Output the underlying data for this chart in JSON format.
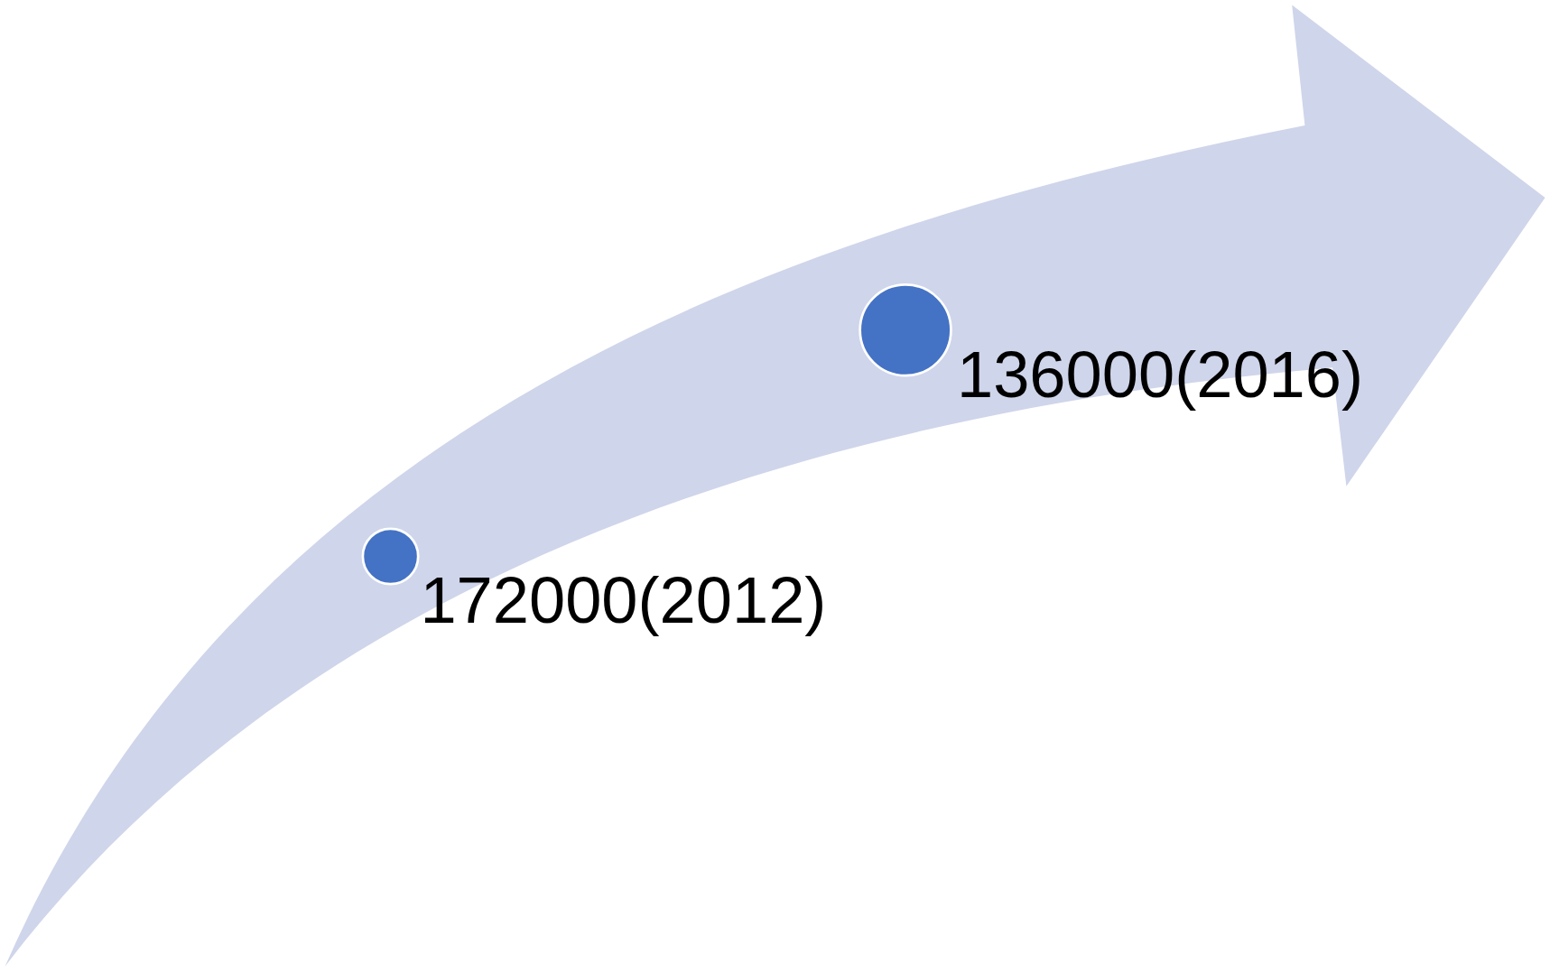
{
  "chart_data": {
    "type": "other",
    "categories": [
      "(2012)",
      "(2016)"
    ],
    "values": [
      172000,
      136000
    ],
    "data_labels": true,
    "colors": [
      "#4472c4",
      "#4472c4"
    ]
  }
}
